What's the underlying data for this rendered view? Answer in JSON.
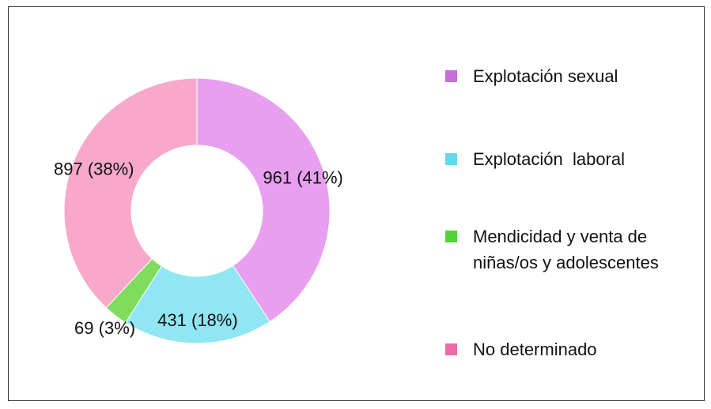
{
  "chart_data": {
    "type": "donut",
    "series": [
      {
        "name": "Explotación sexual",
        "color": "#e89ff0",
        "legend_color": "#c86ed8"
      },
      {
        "name": "Explotación  laboral",
        "color": "#90e6f3",
        "legend_color": "#66d8ec"
      },
      {
        "name": "Mendicidad y venta de niñas/os y adolescentes",
        "color": "#7fdc5c",
        "legend_color": "#55d23a"
      },
      {
        "name": "No determinado",
        "color": "#f8a8ca",
        "legend_color": "#ec6aa8"
      }
    ],
    "values": [
      961,
      431,
      69,
      897
    ],
    "value_labels": [
      "961 (41%)",
      "431 (18%)",
      "69 (3%)",
      "897 (38%)"
    ],
    "legend": "right"
  }
}
